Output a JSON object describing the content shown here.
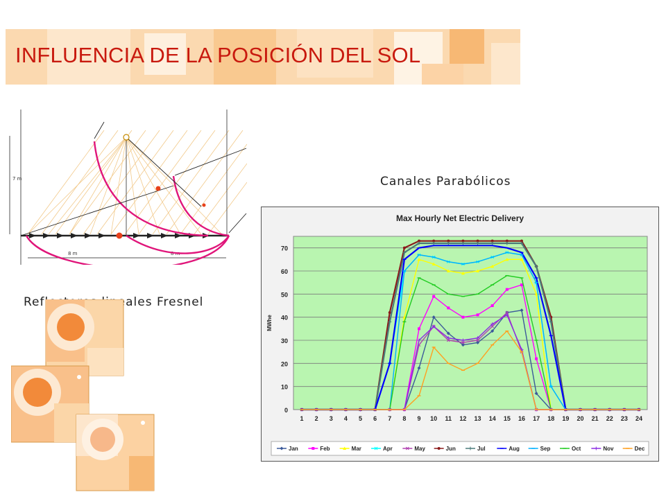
{
  "slide": {
    "title": "INFLUENCIA DE LA POSICIÓN DEL SOL",
    "caption_parabolic": "Canales Parabólicos",
    "caption_fresnel": "Reflectores lineales Fresnel"
  },
  "fresnel_diagram": {
    "height_label": "7 m",
    "width_label_left": "8 m",
    "width_label_right": "8 m"
  },
  "colors": {
    "title": "#c8190e",
    "accent_orange": "#f7a03c",
    "magenta_curve": "#e0157a",
    "plot_bg": "#b9f5b0"
  },
  "chart_data": {
    "type": "line",
    "title": "Max Hourly Net Electric Delivery",
    "xlabel": "",
    "ylabel": "MWhe",
    "ylim": [
      0,
      75
    ],
    "yticks": [
      0,
      10,
      20,
      30,
      40,
      50,
      60,
      70
    ],
    "x": [
      1,
      2,
      3,
      4,
      5,
      6,
      7,
      8,
      9,
      10,
      11,
      12,
      13,
      14,
      15,
      16,
      17,
      18,
      19,
      20,
      21,
      22,
      23,
      24
    ],
    "grid": true,
    "legend_position": "bottom",
    "series": [
      {
        "name": "Jan",
        "color": "#3b5a9a",
        "marker": "diamond",
        "values": [
          0,
          0,
          0,
          0,
          0,
          0,
          0,
          0,
          18,
          40,
          33,
          28,
          29,
          34,
          42,
          43,
          7,
          0,
          0,
          0,
          0,
          0,
          0,
          0
        ]
      },
      {
        "name": "Feb",
        "color": "#ff00ff",
        "marker": "square",
        "values": [
          0,
          0,
          0,
          0,
          0,
          0,
          0,
          0,
          35,
          49,
          44,
          40,
          41,
          45,
          52,
          54,
          22,
          0,
          0,
          0,
          0,
          0,
          0,
          0
        ]
      },
      {
        "name": "Mar",
        "color": "#ffff00",
        "marker": "triangle",
        "values": [
          0,
          0,
          0,
          0,
          0,
          0,
          0,
          40,
          65,
          63,
          60,
          59,
          60,
          62,
          65,
          65,
          50,
          0,
          0,
          0,
          0,
          0,
          0,
          0
        ]
      },
      {
        "name": "Apr",
        "color": "#00ffff",
        "marker": "x",
        "values": [
          0,
          0,
          0,
          0,
          0,
          0,
          20,
          60,
          67,
          66,
          64,
          63,
          64,
          66,
          68,
          67,
          55,
          10,
          0,
          0,
          0,
          0,
          0,
          0
        ]
      },
      {
        "name": "May",
        "color": "#b040b0",
        "marker": "x",
        "values": [
          0,
          0,
          0,
          0,
          0,
          0,
          0,
          0,
          28,
          36,
          30,
          29,
          30,
          36,
          42,
          25,
          0,
          0,
          0,
          0,
          0,
          0,
          0,
          0
        ]
      },
      {
        "name": "Jun",
        "color": "#8b1a1a",
        "marker": "circle",
        "values": [
          0,
          0,
          0,
          0,
          0,
          0,
          42,
          70,
          73,
          73,
          73,
          73,
          73,
          73,
          73,
          73,
          62,
          40,
          0,
          0,
          0,
          0,
          0,
          0
        ]
      },
      {
        "name": "Jul",
        "color": "#4a7a7a",
        "marker": "plus",
        "values": [
          0,
          0,
          0,
          0,
          0,
          0,
          38,
          68,
          72,
          72,
          72,
          72,
          72,
          72,
          72,
          72,
          62,
          38,
          0,
          0,
          0,
          0,
          0,
          0
        ]
      },
      {
        "name": "Aug",
        "color": "#0000ff",
        "marker": "dash",
        "values": [
          0,
          0,
          0,
          0,
          0,
          0,
          20,
          65,
          70,
          71,
          71,
          71,
          71,
          71,
          70,
          68,
          57,
          32,
          0,
          0,
          0,
          0,
          0,
          0
        ]
      },
      {
        "name": "Sep",
        "color": "#00b0ff",
        "marker": "dash",
        "values": [
          0,
          0,
          0,
          0,
          0,
          0,
          0,
          60,
          67,
          66,
          64,
          63,
          64,
          66,
          68,
          67,
          55,
          10,
          0,
          0,
          0,
          0,
          0,
          0
        ]
      },
      {
        "name": "Oct",
        "color": "#22cc22",
        "marker": "dash",
        "values": [
          0,
          0,
          0,
          0,
          0,
          0,
          0,
          38,
          57,
          54,
          50,
          49,
          50,
          54,
          58,
          57,
          30,
          0,
          0,
          0,
          0,
          0,
          0,
          0
        ]
      },
      {
        "name": "Nov",
        "color": "#8a2be2",
        "marker": "plus",
        "values": [
          0,
          0,
          0,
          0,
          0,
          0,
          0,
          0,
          30,
          36,
          31,
          30,
          31,
          37,
          41,
          26,
          0,
          0,
          0,
          0,
          0,
          0,
          0,
          0
        ]
      },
      {
        "name": "Dec",
        "color": "#ffa020",
        "marker": "dash",
        "values": [
          0,
          0,
          0,
          0,
          0,
          0,
          0,
          0,
          6,
          27,
          20,
          17,
          20,
          28,
          34,
          25,
          0,
          0,
          0,
          0,
          0,
          0,
          0,
          0
        ]
      }
    ]
  }
}
